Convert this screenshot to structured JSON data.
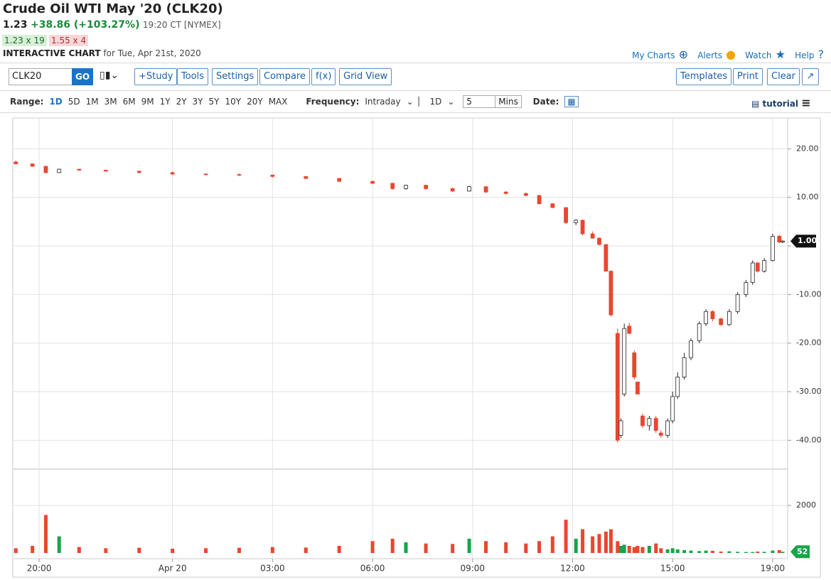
{
  "header": {
    "title": "Crude Oil WTI May '20 (CLK20)",
    "price": "1.23",
    "change": "+38.86 (+103.27%)",
    "time": "19:20 CT [NYMEX]",
    "bid": "1.23 x 19",
    "ask": "1.55 x 4",
    "chart_label": "INTERACTIVE CHART",
    "chart_date": "for Tue, Apr 21st, 2020",
    "links": [
      "My Charts",
      "Alerts",
      "Watch",
      "Help"
    ]
  },
  "toolbar": {
    "symbol": "CLK20",
    "go": "GO",
    "buttons": [
      "+Study",
      "Tools",
      "Settings",
      "Compare",
      "f(x)",
      "Grid View"
    ],
    "right_buttons": [
      "Templates",
      "Print",
      "Clear"
    ]
  },
  "range_bar": {
    "range_label": "Range:",
    "ranges": [
      "1D",
      "5D",
      "1M",
      "3M",
      "6M",
      "9M",
      "1Y",
      "2Y",
      "3Y",
      "5Y",
      "10Y",
      "20Y",
      "MAX"
    ],
    "frequency_label": "Frequency:",
    "frequency": "Intraday",
    "period": "1D",
    "interval": "5",
    "interval_unit": "Mins",
    "date_label": "Date:",
    "tutorial": "tutorial"
  },
  "chart_data": {
    "type": "candlestick",
    "x": [
      2.3,
      2.8,
      3.2,
      3.6,
      4.2,
      5.0,
      6.0,
      7.0,
      8.0,
      9.0,
      10.0,
      11.0,
      12.0,
      13.0,
      13.6,
      14.0,
      14.6,
      15.4,
      15.9,
      16.4,
      17.0,
      17.6,
      18.0,
      18.4,
      18.8,
      19.1,
      19.3,
      19.6,
      19.8,
      20.0,
      20.15,
      20.35,
      20.45,
      20.55,
      20.7,
      20.85,
      20.95,
      21.1,
      21.3,
      21.5,
      21.65,
      21.85,
      22.0,
      22.15,
      22.35,
      22.55,
      22.8,
      23.0,
      23.2,
      23.45,
      23.7,
      23.95,
      24.2,
      24.4,
      24.55,
      24.75,
      25.0,
      25.2,
      25.3
    ],
    "open": [
      17.3,
      16.9,
      16.4,
      15.1,
      15.8,
      15.6,
      15.4,
      15.1,
      14.8,
      14.7,
      14.6,
      14.3,
      13.9,
      13.3,
      12.9,
      11.8,
      12.5,
      11.8,
      11.3,
      12.2,
      11.1,
      10.8,
      10.4,
      8.7,
      7.9,
      4.8,
      5.3,
      2.5,
      1.6,
      0.3,
      -5.2,
      -18,
      -39,
      -30.5,
      -16.5,
      -22,
      -28,
      -35,
      -37,
      -35.5,
      -38.5,
      -39,
      -36,
      -31,
      -27,
      -23,
      -19.5,
      -16,
      -13.5,
      -15,
      -16.2,
      -13.5,
      -10,
      -7.5,
      -3.5,
      -5.2,
      -3,
      2,
      0.8
    ],
    "high": [
      17.6,
      17.0,
      16.5,
      15.9,
      15.9,
      15.7,
      15.5,
      15.3,
      15.0,
      14.9,
      14.7,
      14.4,
      14.0,
      13.4,
      13.0,
      12.6,
      12.6,
      12.0,
      12.4,
      12.3,
      11.3,
      11.0,
      10.5,
      8.8,
      8.0,
      5.5,
      5.4,
      3.0,
      1.8,
      0.4,
      -5.0,
      -17,
      -35.5,
      -16,
      -15.8,
      -21.5,
      -28,
      -34.5,
      -35,
      -35,
      -38,
      -35.5,
      -30,
      -26,
      -22,
      -19,
      -15.5,
      -13,
      -13.2,
      -14.8,
      -13,
      -9.5,
      -7,
      -3,
      -3.3,
      -2.5,
      2.5,
      2.3,
      1.2
    ],
    "low": [
      16.8,
      16.3,
      14.9,
      15.0,
      15.5,
      15.3,
      15.0,
      14.6,
      14.6,
      14.4,
      14.1,
      13.8,
      13.2,
      12.7,
      11.6,
      11.6,
      11.6,
      11.1,
      11.2,
      10.9,
      10.6,
      10.2,
      8.5,
      7.8,
      4.5,
      4.3,
      2.2,
      1.5,
      0.1,
      -5.0,
      -14.5,
      -40.5,
      -39.5,
      -31,
      -18.2,
      -27.5,
      -30.5,
      -37.5,
      -38,
      -38.5,
      -39.5,
      -39.5,
      -36.5,
      -31.5,
      -27.5,
      -23.5,
      -20,
      -16.5,
      -15.5,
      -16.5,
      -16.5,
      -14,
      -10.5,
      -8,
      -5.5,
      -5.5,
      -3.2,
      0.6,
      0.6
    ],
    "close": [
      16.9,
      16.4,
      15.1,
      15.8,
      15.6,
      15.4,
      15.1,
      14.8,
      14.7,
      14.6,
      14.3,
      13.9,
      13.3,
      12.9,
      11.8,
      12.5,
      11.8,
      11.3,
      12.2,
      11.1,
      10.8,
      10.4,
      8.7,
      7.9,
      4.8,
      5.3,
      2.5,
      1.6,
      0.3,
      -5.2,
      -14.2,
      -40,
      -36,
      -17,
      -18,
      -27,
      -30.5,
      -37,
      -35.5,
      -38,
      -39,
      -36,
      -31,
      -27,
      -23,
      -19.5,
      -16,
      -13.5,
      -15,
      -16.2,
      -13.5,
      -10,
      -7.5,
      -3.5,
      -5.2,
      -3,
      2,
      0.8,
      1.0
    ],
    "volume": [
      200,
      300,
      1600,
      700,
      250,
      200,
      220,
      180,
      200,
      220,
      250,
      230,
      300,
      500,
      600,
      450,
      400,
      380,
      600,
      500,
      450,
      400,
      500,
      700,
      1400,
      600,
      1000,
      700,
      800,
      900,
      1000,
      500,
      300,
      350,
      300,
      250,
      300,
      250,
      300,
      400,
      200,
      150,
      200,
      150,
      120,
      100,
      80,
      100,
      90,
      60,
      70,
      50,
      40,
      40,
      60,
      50,
      100,
      120,
      52
    ],
    "xlim": [
      2.21,
      25.45
    ],
    "xticks": [
      {
        "value": 3,
        "label": "20:00"
      },
      {
        "value": 7,
        "label": "Apr 20"
      },
      {
        "value": 10,
        "label": "03:00"
      },
      {
        "value": 13,
        "label": "06:00"
      },
      {
        "value": 16,
        "label": "09:00"
      },
      {
        "value": 19,
        "label": "12:00"
      },
      {
        "value": 22,
        "label": "15:00"
      },
      {
        "value": 25,
        "label": "19:00"
      }
    ],
    "ylim": [
      -45.8,
      26.2
    ],
    "yticks": [
      {
        "value": -40,
        "label": "-40.00"
      },
      {
        "value": -30,
        "label": "-30.00"
      },
      {
        "value": -20,
        "label": "-20.00"
      },
      {
        "value": -10,
        "label": "-10.00"
      },
      {
        "value": 0,
        "label": ""
      },
      {
        "value": 10,
        "label": "10.00"
      },
      {
        "value": 20,
        "label": "20.00"
      }
    ],
    "y2lim": [
      0,
      3500
    ],
    "y2ticks": [
      2000
    ],
    "last_price": {
      "value": 1,
      "label": "1.00"
    },
    "last_volume": 52,
    "up_color": "#ffffff",
    "down_color": "#e8472f",
    "volume_up_color": "#1aa34a",
    "volume_down_color": "#e8472f",
    "grid": true
  }
}
